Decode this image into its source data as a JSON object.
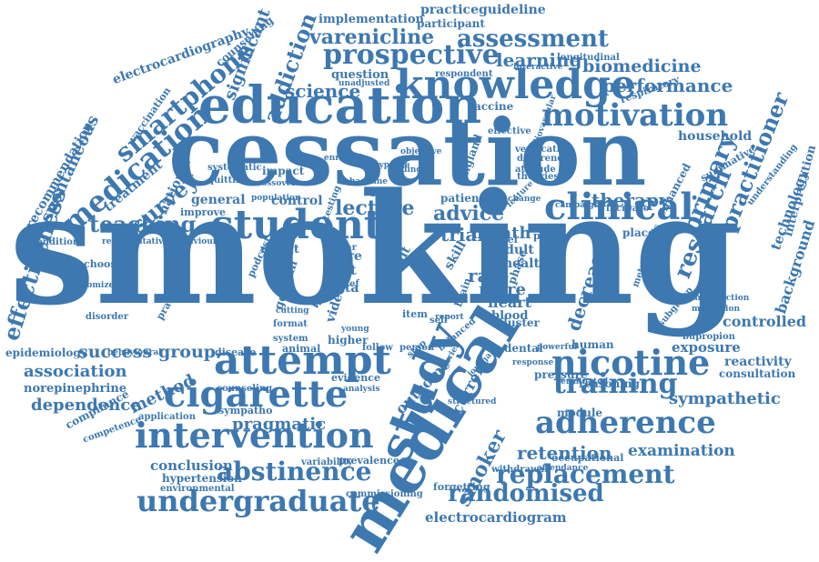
{
  "accent_color": "#3d78b0",
  "words": [
    "smoking",
    "cessation",
    "medical",
    "education",
    "study",
    "student",
    "knowledge",
    "prospective",
    "motivation",
    "intervention",
    "attempt",
    "cigarette",
    "clinical",
    "adherence",
    "nicotine",
    "training",
    "undergraduate",
    "replacement",
    "abstinence",
    "randomised",
    "research",
    "medication",
    "smartphone",
    "primary",
    "practitioner",
    "effectiveness",
    "assessment",
    "varenicline",
    "addiction",
    "learning",
    "biomedicine",
    "performance",
    "retention",
    "examination",
    "success",
    "group",
    "association",
    "method",
    "dependence",
    "sympathetic",
    "therapy",
    "teaching",
    "advice",
    "lecture",
    "trial",
    "month",
    "rate",
    "more",
    "heart",
    "blood",
    "decrease",
    "controlled",
    "exposure",
    "reactivity",
    "consultation",
    "pragmatic",
    "conclusion",
    "hypertension",
    "electrocardiogram",
    "electrocardiography",
    "recommendation",
    "spontaneous",
    "survey",
    "national",
    "treatment",
    "vaccination",
    "significant",
    "counselling",
    "implementation",
    "practiceguideline",
    "participant",
    "question",
    "science",
    "technology",
    "interpretation",
    "background",
    "household",
    "enhanced",
    "summative",
    "understanding",
    "epidemiology",
    "norepinephrine",
    "compliance",
    "competence",
    "application",
    "condition",
    "choosing",
    "german",
    "podcast",
    "video",
    "data",
    "test",
    "care",
    "year",
    "week",
    "item",
    "higher",
    "result",
    "health",
    "adult",
    "skill",
    "quit",
    "phase",
    "placebo",
    "patient",
    "general",
    "improve",
    "impact",
    "control",
    "smoker",
    "outcome",
    "current",
    "human",
    "dental",
    "module",
    "pressure",
    "reasoning",
    "occupational",
    "withdrawal",
    "forgetting",
    "commissioning",
    "environmental",
    "variability",
    "prevalence",
    "evidence",
    "analysis",
    "counseling",
    "sympatho",
    "disease",
    "animal",
    "disorder",
    "practical",
    "randomized",
    "attitude",
    "verification",
    "difference",
    "theories",
    "effective",
    "vaccine",
    "respiratory",
    "longitudinal",
    "respondent",
    "interactive",
    "unadjusted",
    "model",
    "public",
    "cluster",
    "brain",
    "metaanalysis",
    "introduction",
    "mutilation",
    "bupropion",
    "subgroup",
    "attendance",
    "terminated",
    "powerful",
    "barrier",
    "balanced",
    "person",
    "follow",
    "stop",
    "report",
    "system",
    "young",
    "format",
    "cutting",
    "brief",
    "activation",
    "behavioural",
    "representative behaviour",
    "systematic",
    "quitting",
    "crossover",
    "population",
    "enrolled",
    "testing",
    "design",
    "baseline",
    "hypothe",
    "finding",
    "objective",
    "england",
    "increase",
    "campaign",
    "change",
    "feature",
    "structured",
    "journal",
    "response",
    "cardiovascular",
    "self"
  ]
}
